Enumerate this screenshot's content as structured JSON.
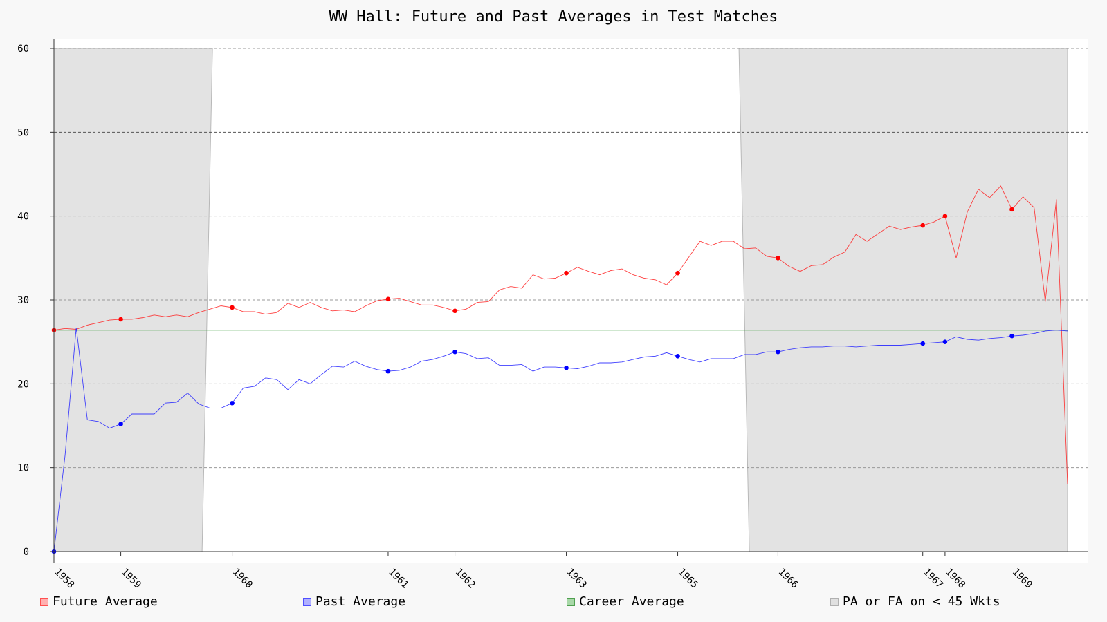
{
  "chart_data": {
    "type": "line",
    "title": "WW Hall: Future and Past Averages in Test Matches",
    "xlabel": "",
    "ylabel": "",
    "ylim": [
      0,
      60
    ],
    "yticks": [
      0,
      10,
      20,
      30,
      40,
      50,
      60
    ],
    "grid": true,
    "legend_placement": "bottom",
    "colors": {
      "future": "#ff0000",
      "past": "#0000ff",
      "career": "#008000",
      "shade": "#e3e3e3"
    },
    "year_ticks": [
      {
        "label": "1958",
        "index": 0
      },
      {
        "label": "1959",
        "index": 6
      },
      {
        "label": "1960",
        "index": 16
      },
      {
        "label": "1961",
        "index": 30
      },
      {
        "label": "1962",
        "index": 36
      },
      {
        "label": "1963",
        "index": 46
      },
      {
        "label": "1965",
        "index": 56
      },
      {
        "label": "1966",
        "index": 65
      },
      {
        "label": "1967",
        "index": 78
      },
      {
        "label": "1968",
        "index": 80
      },
      {
        "label": "1969",
        "index": 86
      }
    ],
    "shaded_regions": [
      {
        "label": "PA or FA on < 45 Wkts",
        "start_index": 0,
        "end_index": 13.3
      },
      {
        "label": "PA or FA on < 45 Wkts",
        "start_index": 61.5,
        "end_index": 91
      }
    ],
    "career_average": 26.4,
    "series": [
      {
        "name": "Future Average",
        "key": "future",
        "values": [
          26.4,
          26.6,
          26.5,
          27.0,
          27.3,
          27.6,
          27.7,
          27.7,
          27.9,
          28.2,
          28.0,
          28.2,
          28.0,
          28.5,
          28.9,
          29.3,
          29.1,
          28.6,
          28.6,
          28.3,
          28.5,
          29.6,
          29.1,
          29.7,
          29.1,
          28.7,
          28.8,
          28.6,
          29.3,
          29.9,
          30.1,
          30.2,
          29.8,
          29.4,
          29.4,
          29.1,
          28.7,
          28.9,
          29.7,
          29.8,
          31.2,
          31.6,
          31.4,
          33.0,
          32.5,
          32.6,
          33.2,
          33.9,
          33.4,
          33.0,
          33.5,
          33.7,
          33.0,
          32.6,
          32.4,
          31.8,
          33.2,
          35.1,
          37.0,
          36.5,
          37.0,
          37.0,
          36.1,
          36.2,
          35.2,
          35.0,
          34.0,
          33.4,
          34.1,
          34.2,
          35.1,
          35.7,
          37.8,
          37.0,
          37.9,
          38.8,
          38.4,
          38.7,
          38.9,
          39.3,
          40.0,
          35.0,
          40.5,
          43.2,
          42.2,
          43.6,
          40.8,
          42.3,
          41.0,
          29.8,
          42.0,
          8.0
        ],
        "dot_indices": [
          0,
          6,
          16,
          30,
          36,
          46,
          56,
          65,
          78,
          80,
          86
        ]
      },
      {
        "name": "Past Average",
        "key": "past",
        "values": [
          0,
          11.5,
          26.7,
          15.7,
          15.5,
          14.7,
          15.2,
          16.4,
          16.4,
          16.4,
          17.7,
          17.8,
          18.9,
          17.6,
          17.1,
          17.1,
          17.7,
          19.5,
          19.7,
          20.7,
          20.5,
          19.3,
          20.5,
          20.0,
          21.1,
          22.1,
          22.0,
          22.7,
          22.1,
          21.7,
          21.5,
          21.6,
          22.0,
          22.7,
          22.9,
          23.3,
          23.8,
          23.6,
          23.0,
          23.1,
          22.2,
          22.2,
          22.3,
          21.5,
          22.0,
          22.0,
          21.9,
          21.8,
          22.1,
          22.5,
          22.5,
          22.6,
          22.9,
          23.2,
          23.3,
          23.7,
          23.3,
          22.9,
          22.6,
          23.0,
          23.0,
          23.0,
          23.5,
          23.5,
          23.8,
          23.8,
          24.1,
          24.3,
          24.4,
          24.4,
          24.5,
          24.5,
          24.4,
          24.5,
          24.6,
          24.6,
          24.6,
          24.7,
          24.8,
          24.9,
          25.0,
          25.6,
          25.3,
          25.2,
          25.4,
          25.5,
          25.7,
          25.8,
          26.0,
          26.3,
          26.4,
          26.3
        ],
        "dot_indices": [
          0,
          6,
          16,
          30,
          36,
          46,
          56,
          65,
          78,
          80,
          86
        ]
      },
      {
        "name": "Career Average",
        "key": "career",
        "values": []
      }
    ],
    "legend": [
      {
        "label": "Future Average",
        "key": "future"
      },
      {
        "label": "Past Average",
        "key": "past"
      },
      {
        "label": "Career Average",
        "key": "career"
      },
      {
        "label": "PA or FA on < 45 Wkts",
        "key": "shade"
      }
    ]
  }
}
